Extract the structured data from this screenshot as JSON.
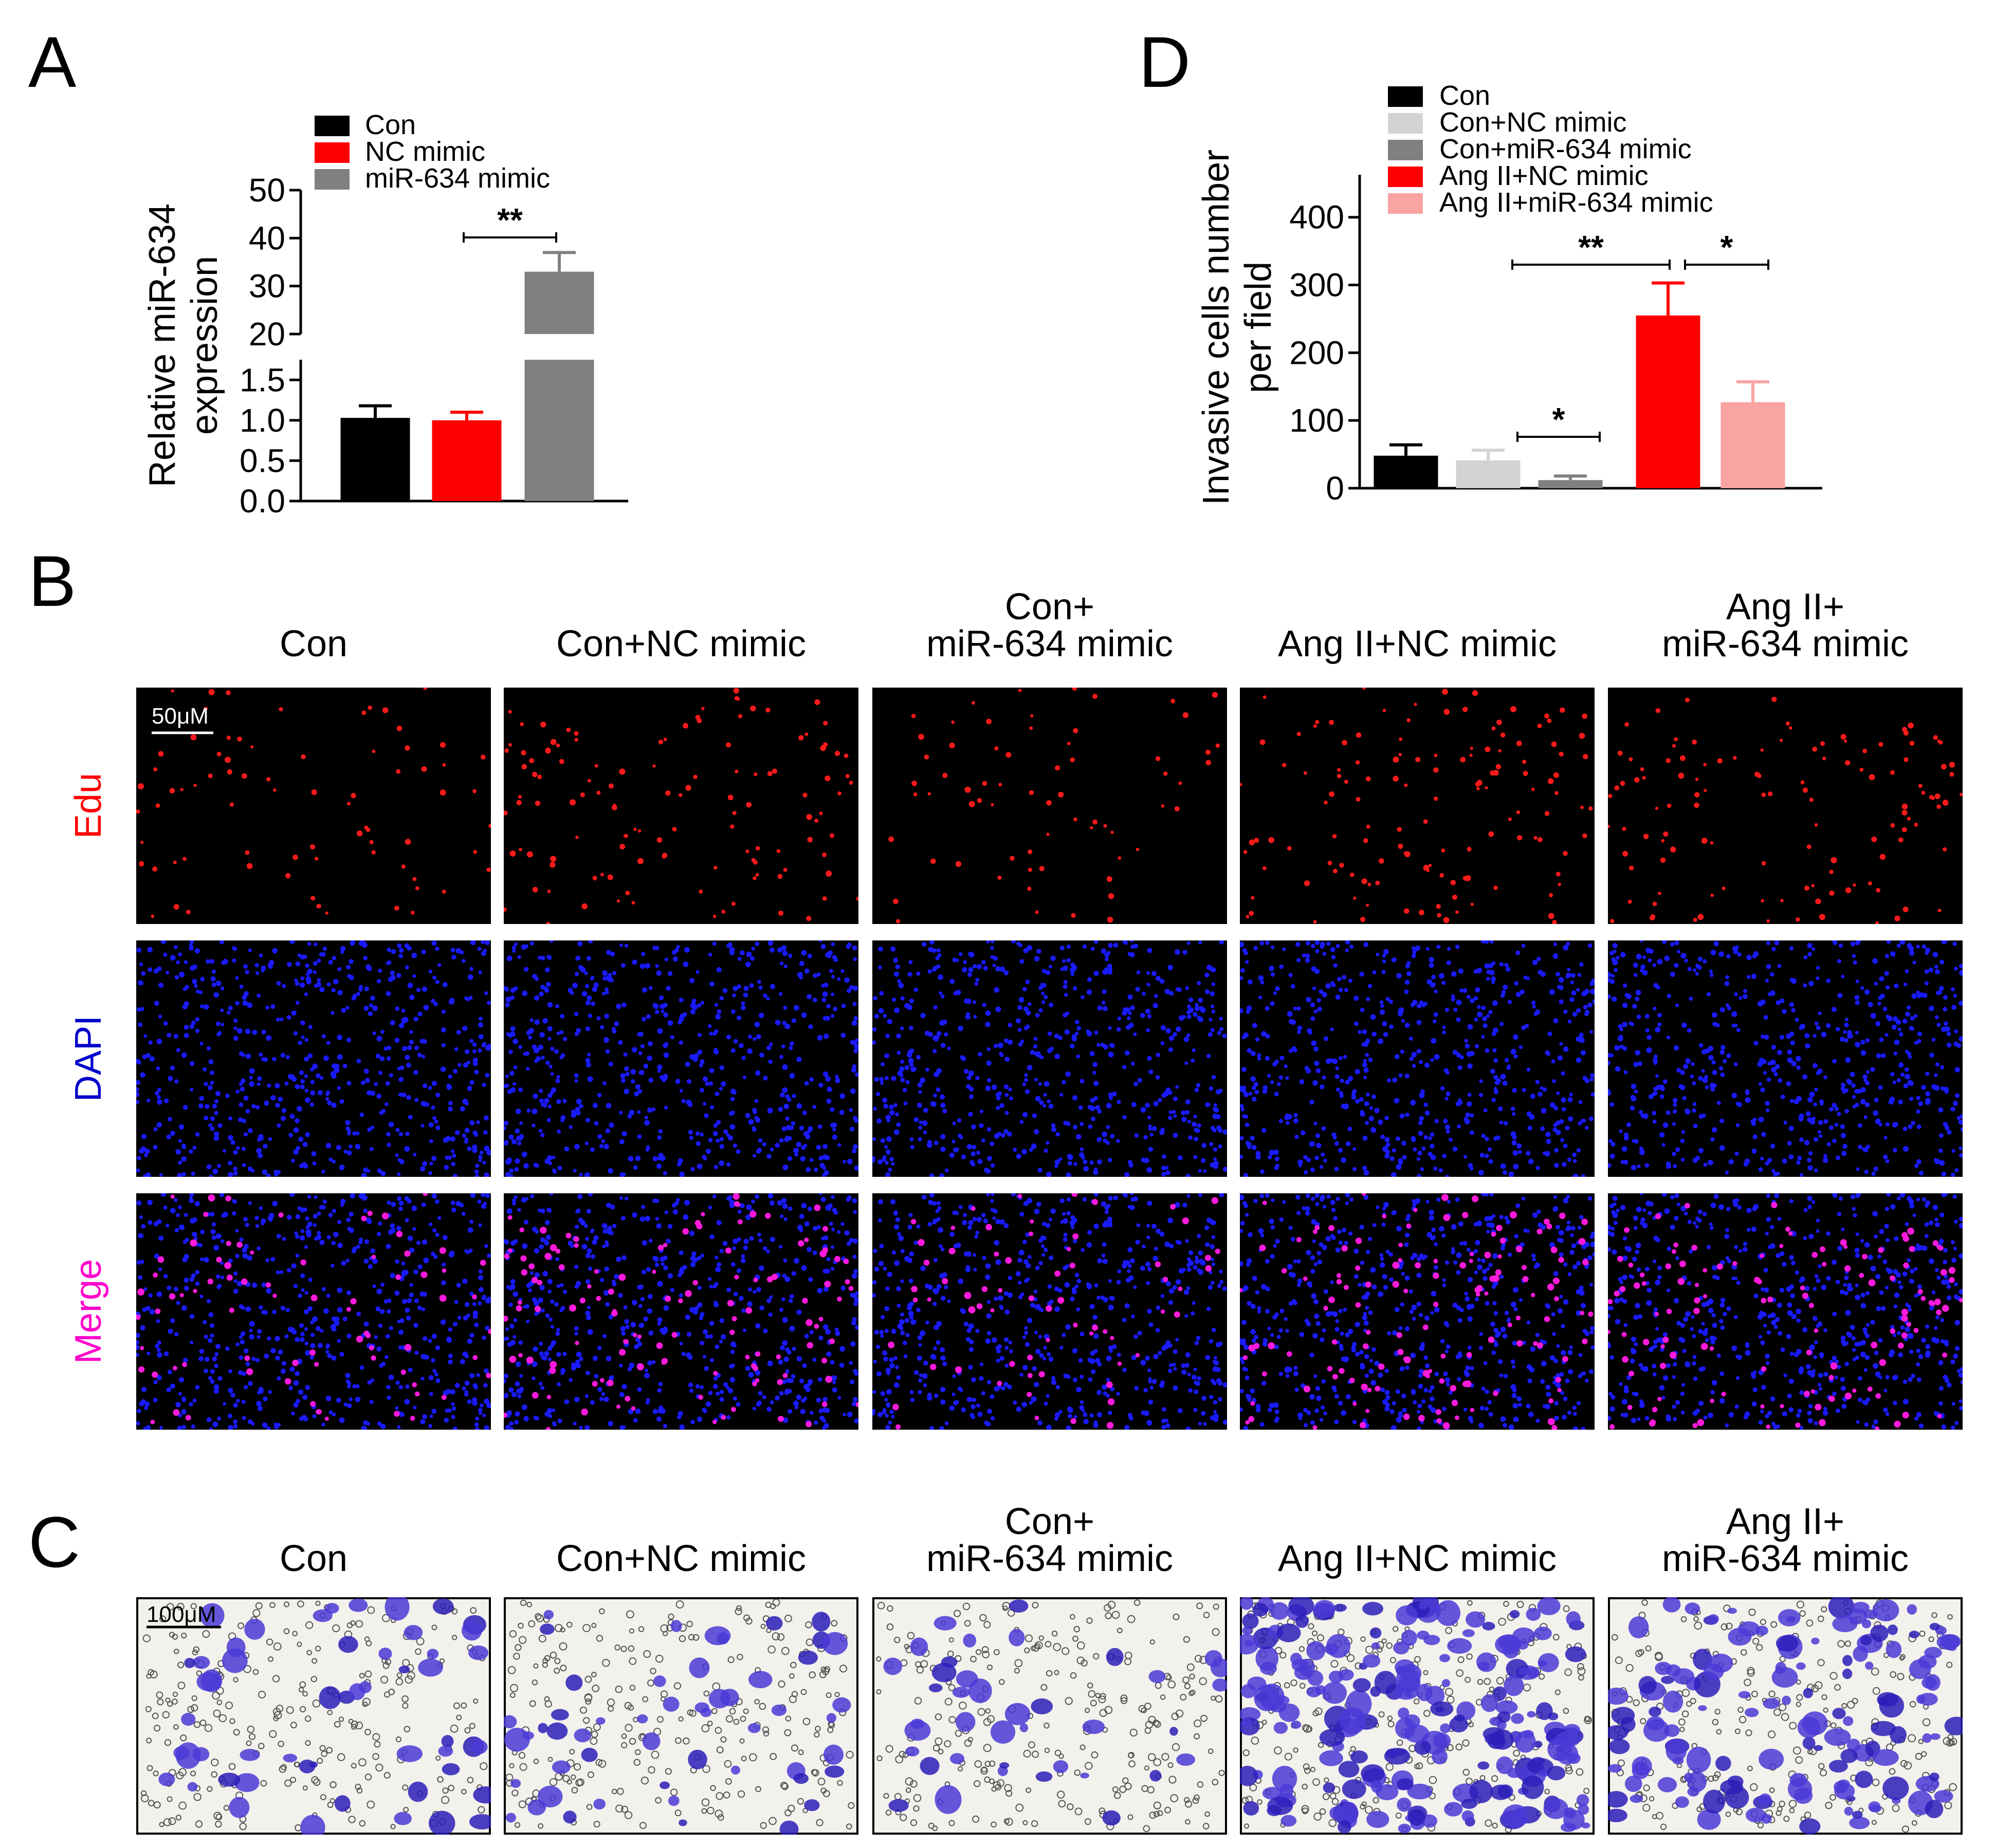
{
  "panels": {
    "A": "A",
    "B": "B",
    "C": "C",
    "D": "D"
  },
  "chart_data": [
    {
      "id": "A",
      "type": "bar",
      "ylabel_line1": "Relative miR-634",
      "ylabel_line2": "expression",
      "categories": [
        "Con",
        "NC mimic",
        "miR-634 mimic"
      ],
      "values": [
        1.03,
        1.0,
        33.0
      ],
      "errors": [
        0.15,
        0.1,
        4.0
      ],
      "colors": [
        "#000000",
        "#ff0000",
        "#808080"
      ],
      "axis_break": true,
      "lower_ylim": [
        0,
        1.75
      ],
      "lower_ticks": [
        "0.0",
        "0.5",
        "1.0",
        "1.5"
      ],
      "lower_tick_values": [
        0,
        0.5,
        1.0,
        1.5
      ],
      "upper_ylim": [
        20,
        50
      ],
      "upper_ticks": [
        "20",
        "30",
        "40",
        "50"
      ],
      "upper_tick_values": [
        20,
        30,
        40,
        50
      ],
      "legend": [
        "Con",
        "NC mimic",
        "miR-634 mimic"
      ],
      "significance": [
        {
          "from": 1,
          "to": 2,
          "label": "**"
        }
      ]
    },
    {
      "id": "D",
      "type": "bar",
      "ylabel_line1": "Invasive cells number",
      "ylabel_line2": "per field",
      "categories": [
        "Con",
        "Con+NC mimic",
        "Con+miR-634 mimic",
        "Ang II+NC mimic",
        "Ang II+miR-634 mimic"
      ],
      "values": [
        48,
        41,
        12,
        255,
        127
      ],
      "errors": [
        16,
        15,
        6,
        48,
        30
      ],
      "colors": [
        "#000000",
        "#d3d3d3",
        "#808080",
        "#ff0000",
        "#f9a3a3"
      ],
      "ylim": [
        0,
        440
      ],
      "ticks": [
        "0",
        "100",
        "200",
        "300",
        "400"
      ],
      "tick_values": [
        0,
        100,
        200,
        300,
        400
      ],
      "legend": [
        "Con",
        "Con+NC mimic",
        "Con+miR-634 mimic",
        "Ang II+NC mimic",
        "Ang II+miR-634 mimic"
      ],
      "significance": [
        {
          "from": 1,
          "to": 3,
          "label": "**"
        },
        {
          "from": 3,
          "to": 4,
          "label": "*"
        },
        {
          "from": 1,
          "to": 2,
          "label": "*"
        }
      ]
    }
  ],
  "panelB": {
    "columns": [
      {
        "line1": "",
        "line2": "Con"
      },
      {
        "line1": "",
        "line2": "Con+NC mimic"
      },
      {
        "line1": "Con+",
        "line2": "miR-634 mimic"
      },
      {
        "line1": "",
        "line2": "Ang II+NC mimic"
      },
      {
        "line1": "Ang II+",
        "line2": "miR-634 mimic"
      }
    ],
    "rows": [
      {
        "label": "Edu",
        "color": "#ff0000"
      },
      {
        "label": "DAPI",
        "color": "#0000cc"
      },
      {
        "label": "Merge",
        "color": "#ff00cc"
      }
    ],
    "scale_bar": "50μM",
    "edu_density": [
      0.35,
      0.55,
      0.3,
      0.6,
      0.55
    ]
  },
  "panelC": {
    "columns": [
      {
        "line1": "",
        "line2": "Con"
      },
      {
        "line1": "",
        "line2": "Con+NC mimic"
      },
      {
        "line1": "Con+",
        "line2": "miR-634 mimic"
      },
      {
        "line1": "",
        "line2": "Ang II+NC mimic"
      },
      {
        "line1": "Ang II+",
        "line2": "miR-634 mimic"
      }
    ],
    "scale_bar": "100μM",
    "stain_density": [
      0.2,
      0.2,
      0.15,
      0.85,
      0.55
    ]
  }
}
